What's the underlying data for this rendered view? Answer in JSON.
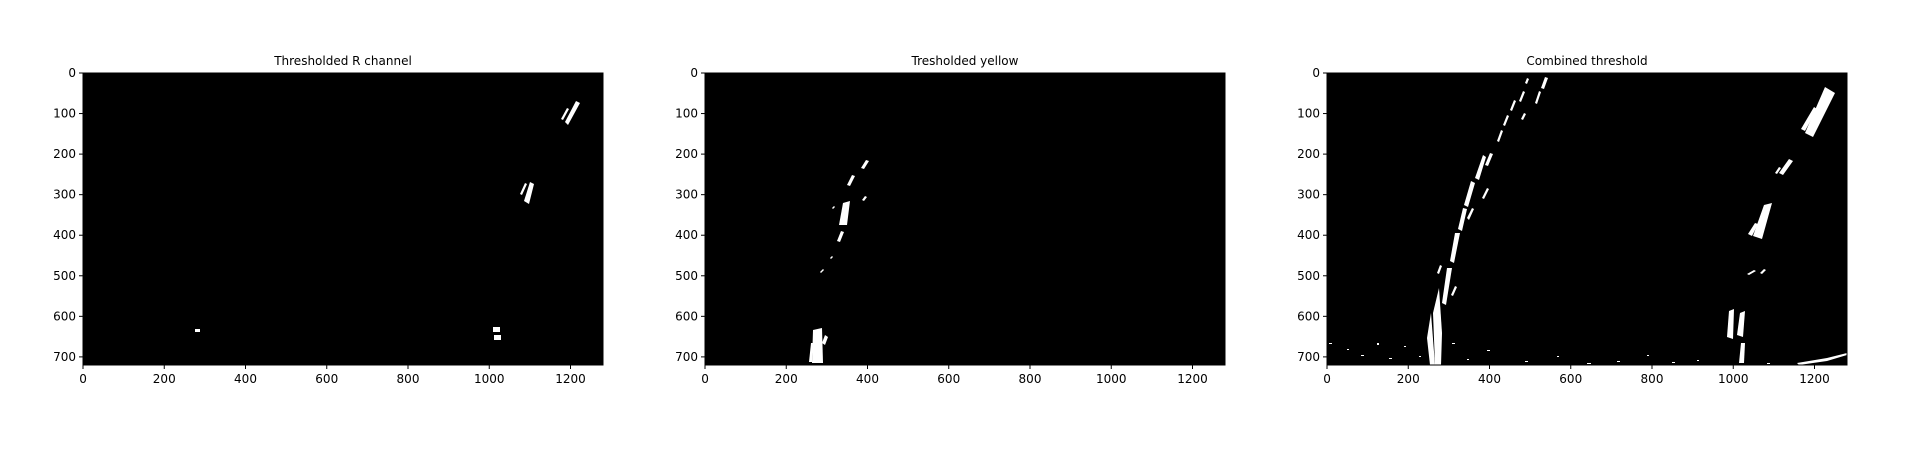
{
  "figure": {
    "background": "#ffffff",
    "image_background": "#000000",
    "mask_color": "#ffffff",
    "axis_color": "#000000"
  },
  "panels": [
    {
      "title": "Thresholded R channel",
      "x_ticks": [
        "0",
        "200",
        "400",
        "600",
        "800",
        "1000",
        "1200"
      ],
      "y_ticks": [
        "0",
        "100",
        "200",
        "300",
        "400",
        "500",
        "600",
        "700"
      ]
    },
    {
      "title": "Tresholded yellow",
      "x_ticks": [
        "0",
        "200",
        "400",
        "600",
        "800",
        "1000",
        "1200"
      ],
      "y_ticks": [
        "0",
        "100",
        "200",
        "300",
        "400",
        "500",
        "600",
        "700"
      ]
    },
    {
      "title": "Combined threshold",
      "x_ticks": [
        "0",
        "200",
        "400",
        "600",
        "800",
        "1000",
        "1200"
      ],
      "y_ticks": [
        "0",
        "100",
        "200",
        "300",
        "400",
        "500",
        "600",
        "700"
      ]
    }
  ]
}
